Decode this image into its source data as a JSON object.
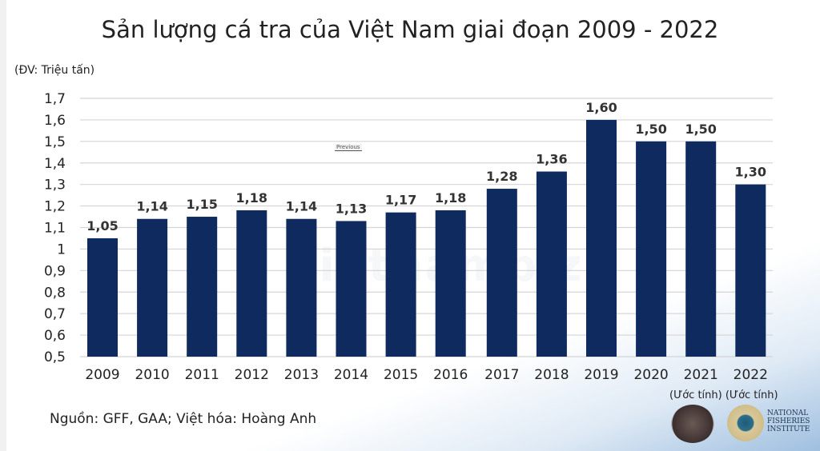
{
  "chart_data": {
    "type": "bar",
    "title": "Sản lượng cá tra của Việt Nam giai đoạn 2009 - 2022",
    "ylabel": "(ĐV: Triệu tấn)",
    "categories": [
      "2009",
      "2010",
      "2011",
      "2012",
      "2013",
      "2014",
      "2015",
      "2016",
      "2017",
      "2018",
      "2019",
      "2020",
      "2021",
      "2022"
    ],
    "values": [
      1.05,
      1.14,
      1.15,
      1.18,
      1.14,
      1.13,
      1.17,
      1.18,
      1.28,
      1.36,
      1.6,
      1.5,
      1.5,
      1.3
    ],
    "data_labels": [
      "1,05",
      "1,14",
      "1,15",
      "1,18",
      "1,14",
      "1,13",
      "1,17",
      "1,18",
      "1,28",
      "1,36",
      "1,60",
      "1,50",
      "1,50",
      "1,30"
    ],
    "yticks": [
      "0,5",
      "0,6",
      "0,7",
      "0,8",
      "0,9",
      "1",
      "1,1",
      "1,2",
      "1,3",
      "1,4",
      "1,5",
      "1,6",
      "1,7"
    ],
    "ylim": [
      0.5,
      1.7
    ],
    "grid": true,
    "bar_color": "#0e2a5e"
  },
  "annotations": {
    "source": "Nguồn: GFF, GAA; Việt hóa: Hoàng Anh",
    "estimate_note": "(Ước tính) (Ước tính)",
    "previous_label": "Previous",
    "watermark": "vietnambiz",
    "logo_text": "NATIONAL FISHERIES INSTITUTE"
  }
}
